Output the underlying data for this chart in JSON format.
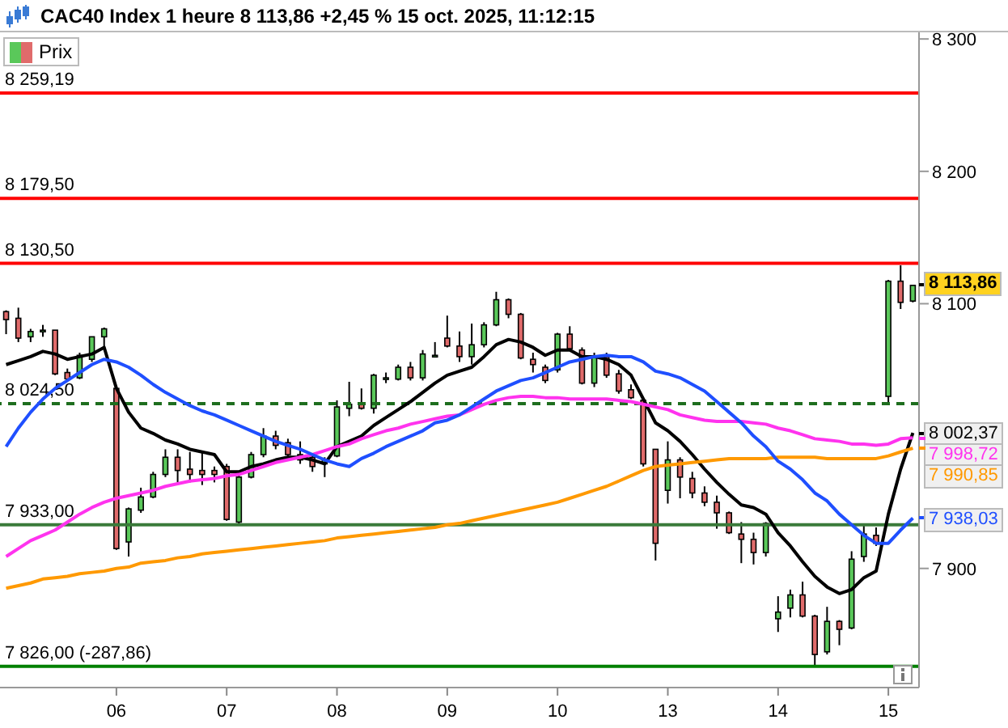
{
  "chart_data": {
    "type": "candlestick",
    "title": "CAC40 Index 1 heure 8 113,86 +2,45 % 15 oct. 2025, 11:12:15",
    "legend": "top left",
    "categories": [
      null,
      null,
      null,
      null,
      null,
      null,
      null,
      null,
      null,
      "06",
      null,
      null,
      null,
      null,
      null,
      null,
      null,
      null,
      "07",
      null,
      null,
      null,
      null,
      null,
      null,
      null,
      null,
      "08",
      null,
      null,
      null,
      null,
      null,
      null,
      null,
      null,
      "09",
      null,
      null,
      null,
      null,
      null,
      null,
      null,
      null,
      "10",
      null,
      null,
      null,
      null,
      null,
      null,
      null,
      null,
      "13",
      null,
      null,
      null,
      null,
      null,
      null,
      null,
      null,
      "14",
      null,
      null,
      null,
      null,
      null,
      null,
      null,
      null,
      "15",
      null,
      null
    ],
    "ylim": [
      7810,
      8305
    ],
    "yticks": [
      {
        "value": 7900,
        "label": "7 900"
      },
      {
        "value": 8100,
        "label": "8 100"
      },
      {
        "value": 8200,
        "label": "8 200"
      },
      {
        "value": 8300,
        "label": "8 300"
      }
    ],
    "ref_lines": [
      {
        "axis": "y",
        "value": 8259.19,
        "label": "8 259,19",
        "color": "#ff0000"
      },
      {
        "axis": "y",
        "value": 8179.5,
        "label": "8 179,50",
        "color": "#ff0000"
      },
      {
        "axis": "y",
        "value": 8130.5,
        "label": "8 130,50",
        "color": "#ff0000"
      },
      {
        "axis": "y",
        "value": 8024.5,
        "label": "8 024,50",
        "color": "#1e6e1e",
        "line_style": "dashed"
      },
      {
        "axis": "y",
        "value": 7933,
        "label": "7 933,00",
        "color": "#3a7a3a"
      },
      {
        "axis": "y",
        "value": 7826,
        "label": "7 826,00 (-287,86)",
        "color": "#008000"
      }
    ],
    "series": [
      {
        "name": "Prix",
        "ohlc": [
          [
            8094,
            8095,
            8077,
            8088
          ],
          [
            8089,
            8097,
            8071,
            8074
          ],
          [
            8075,
            8081,
            8071,
            8079
          ],
          [
            8080,
            8084,
            8075,
            8080
          ],
          [
            8080,
            8080,
            8046,
            8047
          ],
          [
            8048,
            8051,
            8042,
            8043
          ],
          [
            8044,
            8063,
            8043,
            8061
          ],
          [
            8058,
            8075,
            8056,
            8075
          ],
          [
            8075,
            8082,
            8067,
            8081
          ],
          [
            8036,
            8037,
            7914,
            7915
          ],
          [
            7920,
            7946,
            7909,
            7945
          ],
          [
            7944,
            7961,
            7942,
            7954
          ],
          [
            7954,
            7973,
            7953,
            7971
          ],
          [
            7971,
            7990,
            7969,
            7984
          ],
          [
            7984,
            7990,
            7965,
            7974
          ],
          [
            7975,
            7988,
            7965,
            7971
          ],
          [
            7974,
            7988,
            7963,
            7971
          ],
          [
            7974,
            7977,
            7965,
            7971
          ],
          [
            7977,
            7979,
            7936,
            7937
          ],
          [
            7935,
            7971,
            7934,
            7969
          ],
          [
            7969,
            7988,
            7968,
            7986
          ],
          [
            7986,
            8006,
            7984,
            8000
          ],
          [
            8000,
            8004,
            7990,
            7993
          ],
          [
            7995,
            7998,
            7984,
            7986
          ],
          [
            7986,
            7996,
            7979,
            7982
          ],
          [
            7984,
            7986,
            7973,
            7977
          ],
          [
            7979,
            7984,
            7969,
            7982
          ],
          [
            7985,
            8027,
            7984,
            8022
          ],
          [
            8021,
            8041,
            8015,
            8024
          ],
          [
            8024,
            8036,
            8020,
            8021
          ],
          [
            8021,
            8047,
            8017,
            8046
          ],
          [
            8044,
            8048,
            8040,
            8044
          ],
          [
            8043,
            8054,
            8042,
            8052
          ],
          [
            8052,
            8056,
            8042,
            8044
          ],
          [
            8044,
            8065,
            8042,
            8062
          ],
          [
            8061,
            8071,
            8060,
            8061
          ],
          [
            8074,
            8091,
            8067,
            8068
          ],
          [
            8068,
            8079,
            8056,
            8060
          ],
          [
            8060,
            8085,
            8054,
            8069
          ],
          [
            8069,
            8086,
            8067,
            8084
          ],
          [
            8084,
            8109,
            8083,
            8103
          ],
          [
            8103,
            8104,
            8089,
            8092
          ],
          [
            8092,
            8093,
            8058,
            8059
          ],
          [
            8058,
            8063,
            8048,
            8054
          ],
          [
            8052,
            8054,
            8040,
            8042
          ],
          [
            8050,
            8078,
            8048,
            8077
          ],
          [
            8077,
            8083,
            8065,
            8066
          ],
          [
            8065,
            8067,
            8039,
            8040
          ],
          [
            8040,
            8063,
            8037,
            8060
          ],
          [
            8060,
            8063,
            8044,
            8046
          ],
          [
            8047,
            8050,
            8032,
            8034
          ],
          [
            8035,
            8039,
            8028,
            8029
          ],
          [
            8027,
            8028,
            7977,
            7979
          ],
          [
            7990,
            7990,
            7906,
            7919
          ],
          [
            7959,
            7996,
            7949,
            7982
          ],
          [
            7982,
            7984,
            7953,
            7969
          ],
          [
            7968,
            7973,
            7953,
            7957
          ],
          [
            7957,
            7962,
            7947,
            7950
          ],
          [
            7950,
            7955,
            7930,
            7942
          ],
          [
            7942,
            7943,
            7926,
            7927
          ],
          [
            7926,
            7935,
            7904,
            7922
          ],
          [
            7922,
            7927,
            7903,
            7912
          ],
          [
            7912,
            7935,
            7909,
            7934
          ],
          [
            7862,
            7879,
            7852,
            7867
          ],
          [
            7870,
            7884,
            7863,
            7880
          ],
          [
            7880,
            7890,
            7863,
            7864
          ],
          [
            7864,
            7865,
            7826,
            7835
          ],
          [
            7837,
            7871,
            7835,
            7860
          ],
          [
            7860,
            7861,
            7842,
            7854
          ],
          [
            7855,
            7913,
            7854,
            7907
          ],
          [
            7909,
            7933,
            7905,
            7926
          ],
          [
            7925,
            7931,
            7917,
            7919
          ],
          [
            8030,
            8118,
            8025,
            8117
          ],
          [
            8117,
            8129,
            8096,
            8101
          ],
          [
            8102,
            8114,
            8101,
            8113.86
          ]
        ],
        "colors": [
          "#e06b6b",
          "#e06b6b",
          "#5ac85a",
          "#5ac85a",
          "#e06b6b",
          "#e06b6b",
          "#5ac85a",
          "#5ac85a",
          "#5ac85a",
          "#e06b6b",
          "#5ac85a",
          "#5ac85a",
          "#5ac85a",
          "#5ac85a",
          "#e06b6b",
          "#e06b6b",
          "#e06b6b",
          "#e06b6b",
          "#e06b6b",
          "#5ac85a",
          "#5ac85a",
          "#5ac85a",
          "#e06b6b",
          "#e06b6b",
          "#e06b6b",
          "#e06b6b",
          "#5ac85a",
          "#5ac85a",
          "#5ac85a",
          "#e06b6b",
          "#5ac85a",
          "#5ac85a",
          "#5ac85a",
          "#e06b6b",
          "#5ac85a",
          "#5ac85a",
          "#e06b6b",
          "#e06b6b",
          "#5ac85a",
          "#5ac85a",
          "#5ac85a",
          "#e06b6b",
          "#e06b6b",
          "#e06b6b",
          "#e06b6b",
          "#5ac85a",
          "#e06b6b",
          "#e06b6b",
          "#5ac85a",
          "#e06b6b",
          "#e06b6b",
          "#e06b6b",
          "#e06b6b",
          "#e06b6b",
          "#5ac85a",
          "#e06b6b",
          "#e06b6b",
          "#e06b6b",
          "#e06b6b",
          "#e06b6b",
          "#e06b6b",
          "#e06b6b",
          "#5ac85a",
          "#5ac85a",
          "#5ac85a",
          "#e06b6b",
          "#e06b6b",
          "#5ac85a",
          "#e06b6b",
          "#5ac85a",
          "#5ac85a",
          "#e06b6b",
          "#5ac85a",
          "#e06b6b",
          "#5ac85a"
        ],
        "value_labels": [
          null,
          null,
          null,
          null,
          null,
          null,
          null,
          null,
          null,
          null,
          null,
          null,
          null,
          null,
          null,
          null,
          null,
          null,
          null,
          null,
          null,
          null,
          null,
          null,
          null,
          null,
          null,
          null,
          null,
          null,
          null,
          null,
          null,
          null,
          null,
          null,
          null,
          null,
          null,
          null,
          null,
          null,
          null,
          null,
          null,
          null,
          null,
          null,
          null,
          null,
          null,
          null,
          null,
          null,
          null,
          null,
          null,
          null,
          null,
          null,
          null,
          null,
          null,
          null,
          null,
          null,
          null,
          null,
          null,
          null,
          null,
          null,
          null,
          null,
          "8 113,86"
        ]
      },
      {
        "type": "line",
        "color": "#000000",
        "values": [
          8054,
          8057,
          8060,
          8064,
          8062,
          8058,
          8060,
          8062,
          8067,
          8036,
          8018,
          8006,
          8002,
          7997,
          7994,
          7990,
          7988,
          7986,
          7973,
          7973,
          7977,
          7979,
          7982,
          7984,
          7984,
          7982,
          7979,
          7992,
          7996,
          8000,
          8008,
          8014,
          8020,
          8026,
          8033,
          8040,
          8046,
          8049,
          8052,
          8060,
          8069,
          8073,
          8071,
          8067,
          8061,
          8065,
          8065,
          8060,
          8060,
          8058,
          8054,
          8046,
          8028,
          8010,
          8004,
          7996,
          7986,
          7975,
          7965,
          7956,
          7948,
          7946,
          7941,
          7927,
          7917,
          7905,
          7894,
          7886,
          7881,
          7884,
          7893,
          7898,
          7941,
          7975,
          8002.37
        ],
        "value_labels": [
          null,
          null,
          null,
          null,
          null,
          null,
          null,
          null,
          null,
          null,
          null,
          null,
          null,
          null,
          null,
          null,
          null,
          null,
          null,
          null,
          null,
          null,
          null,
          null,
          null,
          null,
          null,
          null,
          null,
          null,
          null,
          null,
          null,
          null,
          null,
          null,
          null,
          null,
          null,
          null,
          null,
          null,
          null,
          null,
          null,
          null,
          null,
          null,
          null,
          null,
          null,
          null,
          null,
          null,
          null,
          null,
          null,
          null,
          null,
          null,
          null,
          null,
          null,
          null,
          null,
          null,
          null,
          null,
          null,
          null,
          null,
          null,
          null,
          null,
          "8 002,37"
        ]
      },
      {
        "type": "line",
        "color": "#ff33ee",
        "values": [
          7909,
          7915,
          7921,
          7925,
          7929,
          7935,
          7941,
          7946,
          7950,
          7953,
          7955,
          7957,
          7959,
          7962,
          7964,
          7966,
          7967,
          7968,
          7970,
          7971,
          7974,
          7977,
          7980,
          7982,
          7984,
          7986,
          7989,
          7992,
          7994,
          7998,
          8001,
          8004,
          8006,
          8009,
          8011,
          8013,
          8015,
          8016,
          8020,
          8024,
          8027,
          8029,
          8030,
          8030,
          8029,
          8029,
          8028,
          8028,
          8028,
          8028,
          8027,
          8026,
          8024,
          8022,
          8020,
          8016,
          8014,
          8012,
          8011,
          8011,
          8011,
          8010,
          8009,
          8006,
          8004,
          8001,
          7998,
          7997,
          7996,
          7994,
          7994,
          7993,
          7994,
          7998,
          7998.72
        ],
        "value_labels": [
          null,
          null,
          null,
          null,
          null,
          null,
          null,
          null,
          null,
          null,
          null,
          null,
          null,
          null,
          null,
          null,
          null,
          null,
          null,
          null,
          null,
          null,
          null,
          null,
          null,
          null,
          null,
          null,
          null,
          null,
          null,
          null,
          null,
          null,
          null,
          null,
          null,
          null,
          null,
          null,
          null,
          null,
          null,
          null,
          null,
          null,
          null,
          null,
          null,
          null,
          null,
          null,
          null,
          null,
          null,
          null,
          null,
          null,
          null,
          null,
          null,
          null,
          null,
          null,
          null,
          null,
          null,
          null,
          null,
          null,
          null,
          null,
          null,
          null,
          "7 998,72"
        ]
      },
      {
        "type": "line",
        "color": "#ff9900",
        "values": [
          7885,
          7887,
          7889,
          7892,
          7893,
          7894,
          7896,
          7897,
          7898,
          7900,
          7901,
          7904,
          7905,
          7906,
          7908,
          7909,
          7911,
          7912,
          7913,
          7914,
          7915,
          7916,
          7917,
          7918,
          7919,
          7920,
          7921,
          7923,
          7924,
          7925,
          7926,
          7927,
          7928,
          7929,
          7930,
          7931,
          7933,
          7934,
          7936,
          7938,
          7940,
          7942,
          7944,
          7946,
          7948,
          7950,
          7953,
          7956,
          7959,
          7962,
          7966,
          7970,
          7974,
          7977,
          7978,
          7979,
          7980,
          7981,
          7982,
          7983,
          7983,
          7983,
          7983,
          7984,
          7984,
          7984,
          7984,
          7983,
          7983,
          7983,
          7983,
          7983,
          7985,
          7988,
          7990.85
        ],
        "value_labels": [
          null,
          null,
          null,
          null,
          null,
          null,
          null,
          null,
          null,
          null,
          null,
          null,
          null,
          null,
          null,
          null,
          null,
          null,
          null,
          null,
          null,
          null,
          null,
          null,
          null,
          null,
          null,
          null,
          null,
          null,
          null,
          null,
          null,
          null,
          null,
          null,
          null,
          null,
          null,
          null,
          null,
          null,
          null,
          null,
          null,
          null,
          null,
          null,
          null,
          null,
          null,
          null,
          null,
          null,
          null,
          null,
          null,
          null,
          null,
          null,
          null,
          null,
          null,
          null,
          null,
          null,
          null,
          null,
          null,
          null,
          null,
          null,
          null,
          null,
          "7 990,85"
        ]
      },
      {
        "type": "line",
        "color": "#1f4fff",
        "values": [
          7992,
          8006,
          8018,
          8028,
          8036,
          8042,
          8048,
          8054,
          8058,
          8056,
          8052,
          8046,
          8039,
          8033,
          8028,
          8023,
          8019,
          8016,
          8012,
          8008,
          8004,
          8000,
          7996,
          7993,
          7990,
          7986,
          7982,
          7979,
          7977,
          7983,
          7987,
          7992,
          7996,
          8000,
          8004,
          8010,
          8012,
          8016,
          8022,
          8028,
          8034,
          8038,
          8042,
          8044,
          8048,
          8052,
          8056,
          8058,
          8060,
          8061,
          8060,
          8060,
          8056,
          8049,
          8047,
          8044,
          8039,
          8034,
          8026,
          8018,
          8010,
          8000,
          7992,
          7981,
          7975,
          7967,
          7957,
          7951,
          7941,
          7933,
          7925,
          7919,
          7919,
          7929,
          7938.03
        ],
        "value_labels": [
          null,
          null,
          null,
          null,
          null,
          null,
          null,
          null,
          null,
          null,
          null,
          null,
          null,
          null,
          null,
          null,
          null,
          null,
          null,
          null,
          null,
          null,
          null,
          null,
          null,
          null,
          null,
          null,
          null,
          null,
          null,
          null,
          null,
          null,
          null,
          null,
          null,
          null,
          null,
          null,
          null,
          null,
          null,
          null,
          null,
          null,
          null,
          null,
          null,
          null,
          null,
          null,
          null,
          null,
          null,
          null,
          null,
          null,
          null,
          null,
          null,
          null,
          null,
          null,
          null,
          null,
          null,
          null,
          null,
          null,
          null,
          null,
          null,
          null,
          "7 938,03"
        ]
      }
    ]
  }
}
